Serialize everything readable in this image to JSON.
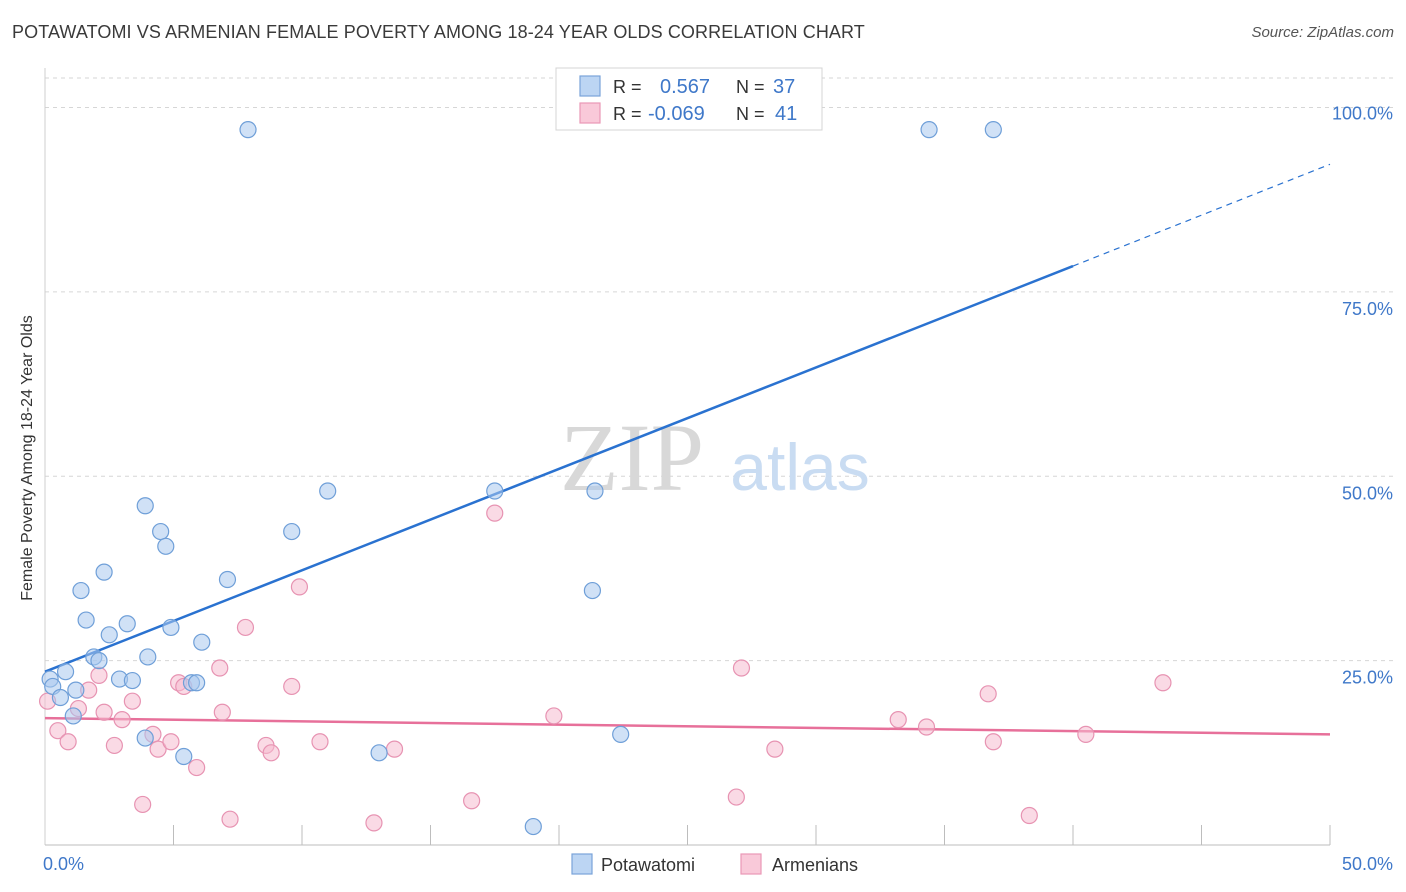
{
  "header": {
    "title": "POTAWATOMI VS ARMENIAN FEMALE POVERTY AMONG 18-24 YEAR OLDS CORRELATION CHART",
    "source": "Source: ZipAtlas.com"
  },
  "watermark": {
    "zip": "ZIP",
    "atlas": "atlas"
  },
  "colors": {
    "blue_fill": "#aac8ef",
    "blue_stroke": "#6f9fd8",
    "blue_line": "#2a72d0",
    "pink_fill": "#f6bcd0",
    "pink_stroke": "#e793b2",
    "pink_line": "#e7709a",
    "axis_label": "#3f78c9",
    "grid": "#d6d6d6"
  },
  "legend_top": {
    "rows": [
      {
        "r_label": "R =",
        "r_value": "0.567",
        "n_label": "N =",
        "n_value": "37"
      },
      {
        "r_label": "R =",
        "r_value": "-0.069",
        "n_label": "N =",
        "n_value": "41"
      }
    ]
  },
  "chart_data": {
    "type": "scatter",
    "title": "POTAWATOMI VS ARMENIAN FEMALE POVERTY AMONG 18-24 YEAR OLDS CORRELATION CHART",
    "xlabel": "",
    "ylabel": "Female Poverty Among 18-24 Year Olds",
    "xlim": [
      0,
      50
    ],
    "ylim": [
      0,
      104
    ],
    "x_tick_labels": [
      "0.0%",
      "50.0%"
    ],
    "y_ticks": [
      25,
      50,
      75,
      100
    ],
    "y_tick_labels": [
      "25.0%",
      "50.0%",
      "75.0%",
      "100.0%"
    ],
    "grid": true,
    "legend_position": "bottom-center",
    "series": [
      {
        "name": "Potawatomi",
        "r": 0.567,
        "n": 37,
        "trend": {
          "x0": 0,
          "y0": 23.5,
          "x1": 40,
          "y1": 78.5,
          "dashed_to_x": 50,
          "dashed_to_y": 92.3
        },
        "points": [
          [
            0.2,
            22.5
          ],
          [
            0.3,
            21.5
          ],
          [
            0.6,
            20
          ],
          [
            0.8,
            23.5
          ],
          [
            1.1,
            17.5
          ],
          [
            1.2,
            21.0
          ],
          [
            1.4,
            34.5
          ],
          [
            1.6,
            30.5
          ],
          [
            1.9,
            25.5
          ],
          [
            2.1,
            25.0
          ],
          [
            2.3,
            37.0
          ],
          [
            2.5,
            28.5
          ],
          [
            2.9,
            22.5
          ],
          [
            3.2,
            30.0
          ],
          [
            3.4,
            22.3
          ],
          [
            3.9,
            46.0
          ],
          [
            3.9,
            14.5
          ],
          [
            4.0,
            25.5
          ],
          [
            4.5,
            42.5
          ],
          [
            4.7,
            40.5
          ],
          [
            4.9,
            29.5
          ],
          [
            5.4,
            12.0
          ],
          [
            5.7,
            22.0
          ],
          [
            5.9,
            22.0
          ],
          [
            6.1,
            27.5
          ],
          [
            7.1,
            36.0
          ],
          [
            7.9,
            97.0
          ],
          [
            9.6,
            42.5
          ],
          [
            11.0,
            48.0
          ],
          [
            13.0,
            12.5
          ],
          [
            17.5,
            48.0
          ],
          [
            19.0,
            2.5
          ],
          [
            21.3,
            34.5
          ],
          [
            21.4,
            48.0
          ],
          [
            22.4,
            15.0
          ],
          [
            34.4,
            97.0
          ],
          [
            36.9,
            97.0
          ]
        ]
      },
      {
        "name": "Armenians",
        "r": -0.069,
        "n": 41,
        "trend": {
          "x0": 0,
          "y0": 17.2,
          "x1": 50,
          "y1": 15.0
        },
        "points": [
          [
            0.1,
            19.5
          ],
          [
            0.5,
            15.5
          ],
          [
            0.9,
            14.0
          ],
          [
            1.3,
            18.5
          ],
          [
            1.7,
            21.0
          ],
          [
            2.1,
            23.0
          ],
          [
            2.3,
            18.0
          ],
          [
            2.7,
            13.5
          ],
          [
            3.0,
            17.0
          ],
          [
            3.4,
            19.5
          ],
          [
            3.8,
            5.5
          ],
          [
            4.2,
            15.0
          ],
          [
            4.4,
            13.0
          ],
          [
            4.9,
            14.0
          ],
          [
            5.2,
            22.0
          ],
          [
            5.4,
            21.5
          ],
          [
            5.9,
            10.5
          ],
          [
            6.8,
            24.0
          ],
          [
            6.9,
            18.0
          ],
          [
            7.2,
            3.5
          ],
          [
            7.8,
            29.5
          ],
          [
            8.6,
            13.5
          ],
          [
            8.8,
            12.5
          ],
          [
            9.6,
            21.5
          ],
          [
            9.9,
            35.0
          ],
          [
            10.7,
            14.0
          ],
          [
            12.8,
            3.0
          ],
          [
            13.6,
            13.0
          ],
          [
            16.6,
            6.0
          ],
          [
            17.5,
            45.0
          ],
          [
            19.8,
            17.5
          ],
          [
            26.9,
            6.5
          ],
          [
            27.1,
            24.0
          ],
          [
            28.4,
            13.0
          ],
          [
            33.2,
            17.0
          ],
          [
            34.3,
            16.0
          ],
          [
            36.7,
            20.5
          ],
          [
            36.9,
            14.0
          ],
          [
            38.3,
            4.0
          ],
          [
            40.5,
            15.0
          ],
          [
            43.5,
            22.0
          ]
        ]
      }
    ]
  }
}
